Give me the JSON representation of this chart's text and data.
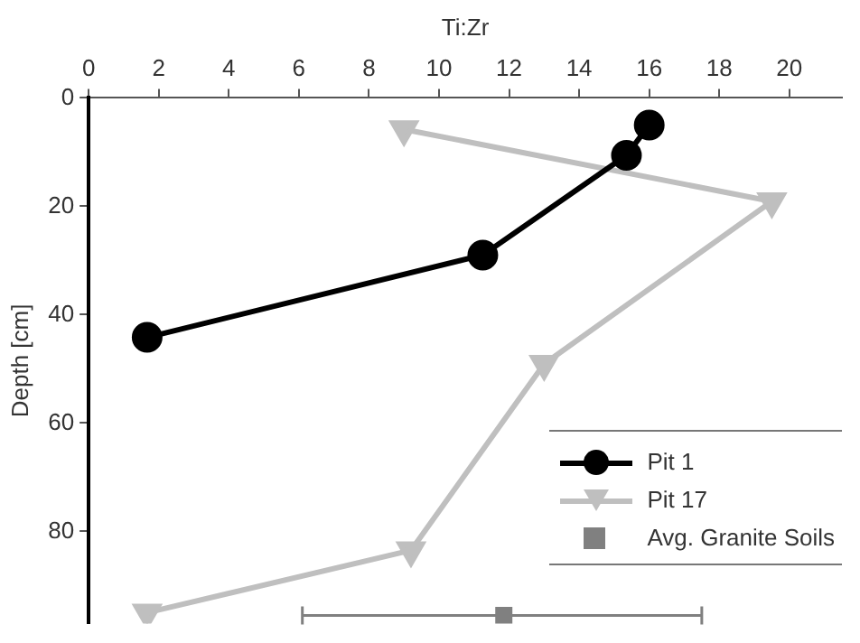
{
  "chart_data": {
    "type": "line",
    "xlabel": "Ti:Zr",
    "ylabel": "Depth [cm]",
    "xlim": [
      0,
      21.5
    ],
    "xticks": [
      0,
      2,
      4,
      6,
      8,
      10,
      12,
      14,
      16,
      18,
      20
    ],
    "ylim": [
      97,
      0
    ],
    "yticks": [
      0,
      20,
      40,
      60,
      80
    ],
    "legend": "bottom right",
    "grid": false,
    "series": [
      {
        "name": "Pit 1",
        "color": "#000000",
        "marker": "circle",
        "x": [
          16,
          15.35,
          11.25,
          1.67
        ],
        "values": [
          5,
          10.6,
          29,
          44.2
        ]
      },
      {
        "name": "Pit 17",
        "color": "#bfbfbf",
        "marker": "triangle",
        "x": [
          9,
          19.5,
          13,
          9.2,
          1.67
        ],
        "values": [
          5.8,
          19.1,
          49.1,
          83.5,
          95
        ]
      },
      {
        "name": "Avg. Granite Soils",
        "type": "scatter",
        "color": "#808080",
        "marker": "square",
        "x": [
          11.85
        ],
        "values": [
          95.5
        ],
        "xerrors": [
          [
            6.1,
            17.5
          ]
        ]
      }
    ]
  }
}
